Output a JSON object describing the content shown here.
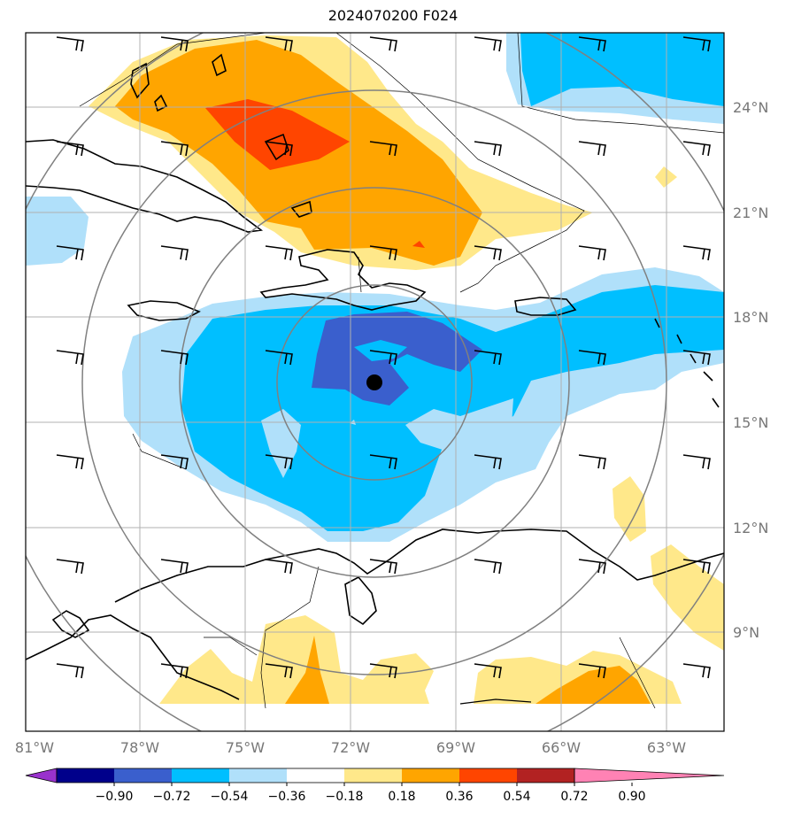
{
  "title": "2024070200 F024",
  "lat_labels": [
    "24°N",
    "21°N",
    "18°N",
    "15°N",
    "12°N",
    "9°N"
  ],
  "lon_labels": [
    "81°W",
    "78°W",
    "75°W",
    "72°W",
    "69°W",
    "66°W",
    "63°W"
  ],
  "colorbar": {
    "ticks": [
      "−0.90",
      "−0.72",
      "−0.54",
      "−0.36",
      "−0.18",
      "0.18",
      "0.36",
      "0.54",
      "0.72",
      "0.90"
    ],
    "colors": [
      "#9932cc",
      "#00008b",
      "#3a5fcd",
      "#00bfff",
      "#b0e0fa",
      "#ffffff",
      "#ffe88a",
      "#ffa500",
      "#ff4500",
      "#b22222",
      "#ff82b4"
    ]
  },
  "colors": {
    "light_blue": "#b0e0fa",
    "deep_sky_blue": "#00bfff",
    "royal_blue": "#3a5fcd",
    "light_yellow": "#ffe88a",
    "orange": "#ffa500",
    "orange_red": "#ff4500",
    "grid": "#b0b0b0",
    "range_rings": "#808080"
  },
  "map": {
    "center_marker": "storm-center-dot",
    "range_rings": 4
  }
}
